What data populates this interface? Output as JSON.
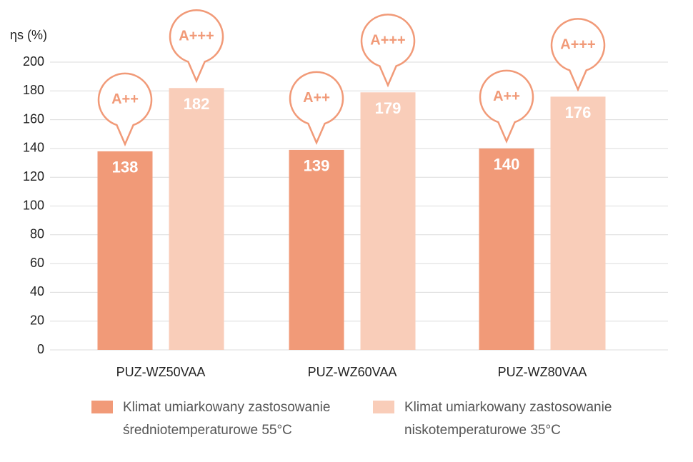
{
  "chart_data": {
    "type": "bar",
    "y_label": "ηs (%)",
    "categories": [
      "PUZ-WZ50VAA",
      "PUZ-WZ60VAA",
      "PUZ-WZ80VAA"
    ],
    "series": [
      {
        "name": "Klimat umiarkowany zastosowanie średniotemperaturowe 55°C",
        "color": "#f19a78",
        "values": [
          138,
          139,
          140
        ],
        "badges": [
          "A++",
          "A++",
          "A++"
        ]
      },
      {
        "name": "Klimat umiarkowany zastosowanie niskotemperaturowe 35°C",
        "color": "#f9cdb9",
        "values": [
          182,
          179,
          176
        ],
        "badges": [
          "A+++",
          "A+++",
          "A+++"
        ]
      }
    ],
    "ylim": [
      0,
      200
    ],
    "yticks": [
      0,
      20,
      40,
      60,
      80,
      100,
      120,
      140,
      160,
      180,
      200
    ],
    "grid": true
  }
}
